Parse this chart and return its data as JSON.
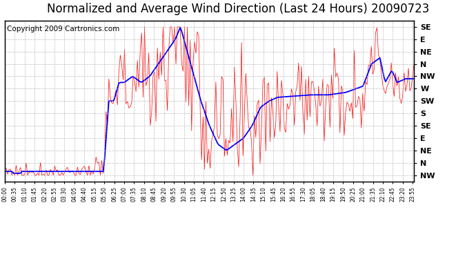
{
  "title": "Normalized and Average Wind Direction (Last 24 Hours) 20090723",
  "copyright": "Copyright 2009 Cartronics.com",
  "ytick_labels_bottom_to_top": [
    "NW",
    "N",
    "NE",
    "E",
    "SE",
    "S",
    "SW",
    "W",
    "NW",
    "N",
    "NE",
    "E",
    "SE"
  ],
  "ytick_labels_top_to_bottom": [
    "SE",
    "E",
    "NE",
    "N",
    "NW",
    "W",
    "SW",
    "S",
    "SE",
    "E",
    "NE",
    "N",
    "NW"
  ],
  "bg_color": "#ffffff",
  "plot_bg_color": "#ffffff",
  "grid_color": "#aaaaaa",
  "red_color": "#ff0000",
  "blue_color": "#0000ff",
  "title_fontsize": 12,
  "copyright_fontsize": 7.5,
  "n_points": 288
}
